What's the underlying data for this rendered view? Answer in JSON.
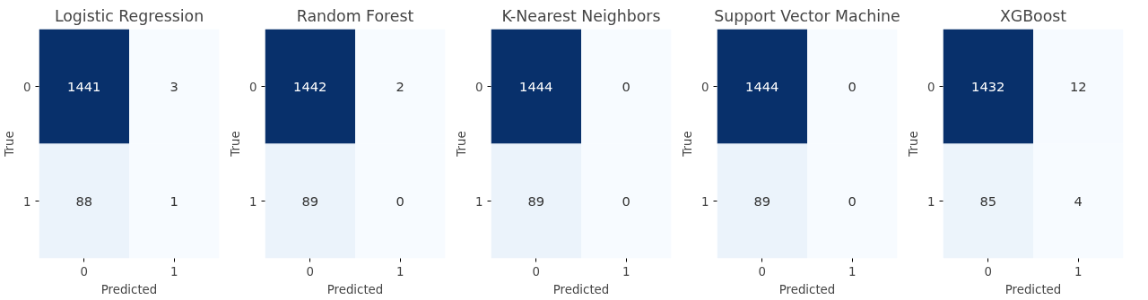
{
  "chart_data": [
    {
      "type": "heatmap",
      "title": "Logistic Regression",
      "xlabel": "Predicted",
      "ylabel": "True",
      "categories": [
        "0",
        "1"
      ],
      "y_categories": [
        "0",
        "1"
      ],
      "cells": [
        [
          1441,
          3
        ],
        [
          88,
          1
        ]
      ],
      "data_labels": true
    },
    {
      "type": "heatmap",
      "title": "Random Forest",
      "xlabel": "Predicted",
      "ylabel": "True",
      "categories": [
        "0",
        "1"
      ],
      "y_categories": [
        "0",
        "1"
      ],
      "cells": [
        [
          1442,
          2
        ],
        [
          89,
          0
        ]
      ],
      "data_labels": true
    },
    {
      "type": "heatmap",
      "title": "K-Nearest Neighbors",
      "xlabel": "Predicted",
      "ylabel": "True",
      "categories": [
        "0",
        "1"
      ],
      "y_categories": [
        "0",
        "1"
      ],
      "cells": [
        [
          1444,
          0
        ],
        [
          89,
          0
        ]
      ],
      "data_labels": true
    },
    {
      "type": "heatmap",
      "title": "Support Vector Machine",
      "xlabel": "Predicted",
      "ylabel": "True",
      "categories": [
        "0",
        "1"
      ],
      "y_categories": [
        "0",
        "1"
      ],
      "cells": [
        [
          1444,
          0
        ],
        [
          89,
          0
        ]
      ],
      "data_labels": true
    },
    {
      "type": "heatmap",
      "title": "XGBoost",
      "xlabel": "Predicted",
      "ylabel": "True",
      "categories": [
        "0",
        "1"
      ],
      "y_categories": [
        "0",
        "1"
      ],
      "cells": [
        [
          1432,
          12
        ],
        [
          85,
          4
        ]
      ],
      "data_labels": true
    }
  ]
}
